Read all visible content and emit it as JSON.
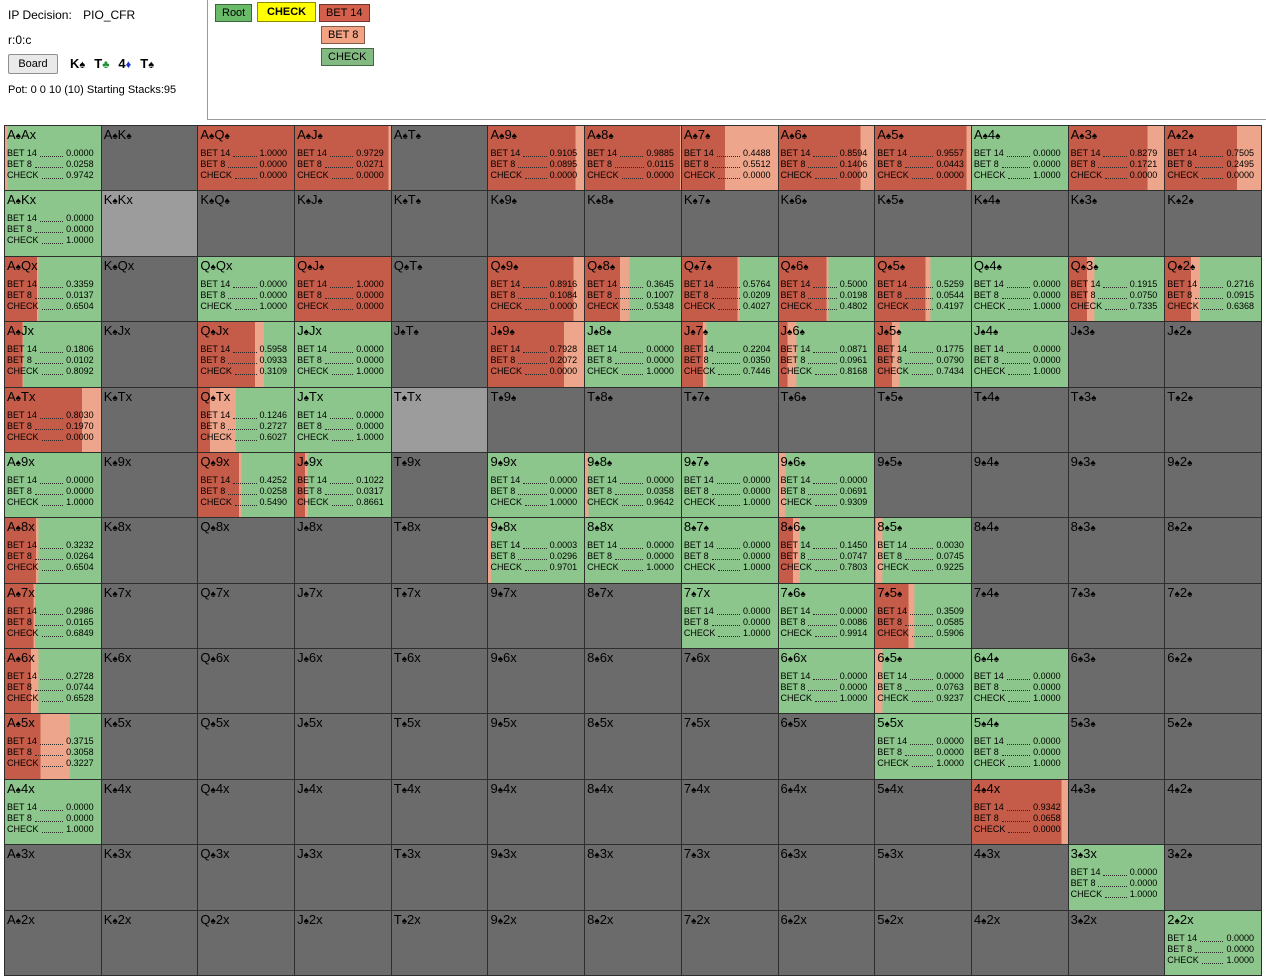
{
  "header": {
    "ip_decision_label": "IP Decision:",
    "ip_decision_value": "PIO_CFR",
    "node": "r:0:c",
    "board_button": "Board",
    "board_cards": [
      {
        "rank": "K",
        "suit": "♠",
        "color": "#000000"
      },
      {
        "rank": "T",
        "suit": "♣",
        "color": "#1e8f35"
      },
      {
        "rank": "4",
        "suit": "♦",
        "color": "#2333d6"
      },
      {
        "rank": "T",
        "suit": "♠",
        "color": "#000000"
      }
    ],
    "pot_line": "Pot: 0 0 10 (10) Starting Stacks:95"
  },
  "tree": {
    "root_label": "Root",
    "root_color": "#69ba69",
    "selected_label": "CHECK",
    "selected_color": "#ffff00",
    "actions": [
      {
        "label": "BET 14",
        "color": "#d2604d"
      },
      {
        "label": "BET 8",
        "color": "#f1a384"
      },
      {
        "label": "CHECK",
        "color": "#82ba82"
      }
    ]
  },
  "strategy": {
    "row_labels": [
      "BET 14",
      "BET 8",
      "CHECK"
    ],
    "colors": {
      "bet14": "#c45c49",
      "bet8": "#eda58b",
      "check": "#8cc68c",
      "not_in_range": "#6b6b6b",
      "blocked": "#9c9c9c"
    }
  },
  "grid": {
    "rows": 13,
    "cols": 13,
    "cells": [
      {
        "label": "A♠Ax",
        "t": "s",
        "v": [
          "0.0000",
          "0.0258",
          "0.9742"
        ]
      },
      {
        "label": "A♠K♠",
        "t": "e"
      },
      {
        "label": "A♠Q♠",
        "t": "s",
        "v": [
          "1.0000",
          "0.0000",
          "0.0000"
        ]
      },
      {
        "label": "A♠J♠",
        "t": "s",
        "v": [
          "0.9729",
          "0.0271",
          "0.0000"
        ]
      },
      {
        "label": "A♠T♠",
        "t": "e"
      },
      {
        "label": "A♠9♠",
        "t": "s",
        "v": [
          "0.9105",
          "0.0895",
          "0.0000"
        ]
      },
      {
        "label": "A♠8♠",
        "t": "s",
        "v": [
          "0.9885",
          "0.0115",
          "0.0000"
        ]
      },
      {
        "label": "A♠7♠",
        "t": "s",
        "v": [
          "0.4488",
          "0.5512",
          "0.0000"
        ]
      },
      {
        "label": "A♠6♠",
        "t": "s",
        "v": [
          "0.8594",
          "0.1406",
          "0.0000"
        ]
      },
      {
        "label": "A♠5♠",
        "t": "s",
        "v": [
          "0.9557",
          "0.0443",
          "0.0000"
        ]
      },
      {
        "label": "A♠4♠",
        "t": "s",
        "v": [
          "0.0000",
          "0.0000",
          "1.0000"
        ]
      },
      {
        "label": "A♠3♠",
        "t": "s",
        "v": [
          "0.8279",
          "0.1721",
          "0.0000"
        ]
      },
      {
        "label": "A♠2♠",
        "t": "s",
        "v": [
          "0.7505",
          "0.2495",
          "0.0000"
        ]
      },
      {
        "label": "A♠Kx",
        "t": "s",
        "v": [
          "0.0000",
          "0.0000",
          "1.0000"
        ]
      },
      {
        "label": "K♠Kx",
        "t": "b"
      },
      {
        "label": "K♠Q♠",
        "t": "e"
      },
      {
        "label": "K♠J♠",
        "t": "e"
      },
      {
        "label": "K♠T♠",
        "t": "e"
      },
      {
        "label": "K♠9♠",
        "t": "e"
      },
      {
        "label": "K♠8♠",
        "t": "e"
      },
      {
        "label": "K♠7♠",
        "t": "e"
      },
      {
        "label": "K♠6♠",
        "t": "e"
      },
      {
        "label": "K♠5♠",
        "t": "e"
      },
      {
        "label": "K♠4♠",
        "t": "e"
      },
      {
        "label": "K♠3♠",
        "t": "e"
      },
      {
        "label": "K♠2♠",
        "t": "e"
      },
      {
        "label": "A♠Qx",
        "t": "s",
        "v": [
          "0.3359",
          "0.0137",
          "0.6504"
        ]
      },
      {
        "label": "K♠Qx",
        "t": "e"
      },
      {
        "label": "Q♠Qx",
        "t": "s",
        "v": [
          "0.0000",
          "0.0000",
          "1.0000"
        ]
      },
      {
        "label": "Q♠J♠",
        "t": "s",
        "v": [
          "1.0000",
          "0.0000",
          "0.0000"
        ]
      },
      {
        "label": "Q♠T♠",
        "t": "e"
      },
      {
        "label": "Q♠9♠",
        "t": "s",
        "v": [
          "0.8916",
          "0.1084",
          "0.0000"
        ]
      },
      {
        "label": "Q♠8♠",
        "t": "s",
        "v": [
          "0.3645",
          "0.1007",
          "0.5348"
        ]
      },
      {
        "label": "Q♠7♠",
        "t": "s",
        "v": [
          "0.5764",
          "0.0209",
          "0.4027"
        ]
      },
      {
        "label": "Q♠6♠",
        "t": "s",
        "v": [
          "0.5000",
          "0.0198",
          "0.4802"
        ]
      },
      {
        "label": "Q♠5♠",
        "t": "s",
        "v": [
          "0.5259",
          "0.0544",
          "0.4197"
        ]
      },
      {
        "label": "Q♠4♠",
        "t": "s",
        "v": [
          "0.0000",
          "0.0000",
          "1.0000"
        ]
      },
      {
        "label": "Q♠3♠",
        "t": "s",
        "v": [
          "0.1915",
          "0.0750",
          "0.7335"
        ]
      },
      {
        "label": "Q♠2♠",
        "t": "s",
        "v": [
          "0.2716",
          "0.0915",
          "0.6368"
        ]
      },
      {
        "label": "A♠Jx",
        "t": "s",
        "v": [
          "0.1806",
          "0.0102",
          "0.8092"
        ]
      },
      {
        "label": "K♠Jx",
        "t": "e"
      },
      {
        "label": "Q♠Jx",
        "t": "s",
        "v": [
          "0.5958",
          "0.0933",
          "0.3109"
        ]
      },
      {
        "label": "J♠Jx",
        "t": "s",
        "v": [
          "0.0000",
          "0.0000",
          "1.0000"
        ]
      },
      {
        "label": "J♠T♠",
        "t": "e"
      },
      {
        "label": "J♠9♠",
        "t": "s",
        "v": [
          "0.7928",
          "0.2072",
          "0.0000"
        ]
      },
      {
        "label": "J♠8♠",
        "t": "s",
        "v": [
          "0.0000",
          "0.0000",
          "1.0000"
        ]
      },
      {
        "label": "J♠7♠",
        "t": "s",
        "v": [
          "0.2204",
          "0.0350",
          "0.7446"
        ]
      },
      {
        "label": "J♠6♠",
        "t": "s",
        "v": [
          "0.0871",
          "0.0961",
          "0.8168"
        ]
      },
      {
        "label": "J♠5♠",
        "t": "s",
        "v": [
          "0.1775",
          "0.0790",
          "0.7434"
        ]
      },
      {
        "label": "J♠4♠",
        "t": "s",
        "v": [
          "0.0000",
          "0.0000",
          "1.0000"
        ]
      },
      {
        "label": "J♠3♠",
        "t": "e"
      },
      {
        "label": "J♠2♠",
        "t": "e"
      },
      {
        "label": "A♠Tx",
        "t": "s",
        "v": [
          "0.8030",
          "0.1970",
          "0.0000"
        ]
      },
      {
        "label": "K♠Tx",
        "t": "e"
      },
      {
        "label": "Q♠Tx",
        "t": "s",
        "v": [
          "0.1246",
          "0.2727",
          "0.6027"
        ]
      },
      {
        "label": "J♠Tx",
        "t": "s",
        "v": [
          "0.0000",
          "0.0000",
          "1.0000"
        ]
      },
      {
        "label": "T♠Tx",
        "t": "b"
      },
      {
        "label": "T♠9♠",
        "t": "e"
      },
      {
        "label": "T♠8♠",
        "t": "e"
      },
      {
        "label": "T♠7♠",
        "t": "e"
      },
      {
        "label": "T♠6♠",
        "t": "e"
      },
      {
        "label": "T♠5♠",
        "t": "e"
      },
      {
        "label": "T♠4♠",
        "t": "e"
      },
      {
        "label": "T♠3♠",
        "t": "e"
      },
      {
        "label": "T♠2♠",
        "t": "e"
      },
      {
        "label": "A♠9x",
        "t": "s",
        "v": [
          "0.0000",
          "0.0000",
          "1.0000"
        ]
      },
      {
        "label": "K♠9x",
        "t": "e"
      },
      {
        "label": "Q♠9x",
        "t": "s",
        "v": [
          "0.4252",
          "0.0258",
          "0.5490"
        ]
      },
      {
        "label": "J♠9x",
        "t": "s",
        "v": [
          "0.1022",
          "0.0317",
          "0.8661"
        ]
      },
      {
        "label": "T♠9x",
        "t": "e"
      },
      {
        "label": "9♠9x",
        "t": "s",
        "v": [
          "0.0000",
          "0.0000",
          "1.0000"
        ]
      },
      {
        "label": "9♠8♠",
        "t": "s",
        "v": [
          "0.0000",
          "0.0358",
          "0.9642"
        ]
      },
      {
        "label": "9♠7♠",
        "t": "s",
        "v": [
          "0.0000",
          "0.0000",
          "1.0000"
        ]
      },
      {
        "label": "9♠6♠",
        "t": "s",
        "v": [
          "0.0000",
          "0.0691",
          "0.9309"
        ]
      },
      {
        "label": "9♠5♠",
        "t": "e"
      },
      {
        "label": "9♠4♠",
        "t": "e"
      },
      {
        "label": "9♠3♠",
        "t": "e"
      },
      {
        "label": "9♠2♠",
        "t": "e"
      },
      {
        "label": "A♠8x",
        "t": "s",
        "v": [
          "0.3232",
          "0.0264",
          "0.6504"
        ]
      },
      {
        "label": "K♠8x",
        "t": "e"
      },
      {
        "label": "Q♠8x",
        "t": "e"
      },
      {
        "label": "J♠8x",
        "t": "e"
      },
      {
        "label": "T♠8x",
        "t": "e"
      },
      {
        "label": "9♠8x",
        "t": "s",
        "v": [
          "0.0003",
          "0.0296",
          "0.9701"
        ]
      },
      {
        "label": "8♠8x",
        "t": "s",
        "v": [
          "0.0000",
          "0.0000",
          "1.0000"
        ]
      },
      {
        "label": "8♠7♠",
        "t": "s",
        "v": [
          "0.0000",
          "0.0000",
          "1.0000"
        ]
      },
      {
        "label": "8♠6♠",
        "t": "s",
        "v": [
          "0.1450",
          "0.0747",
          "0.7803"
        ]
      },
      {
        "label": "8♠5♠",
        "t": "s",
        "v": [
          "0.0030",
          "0.0745",
          "0.9225"
        ]
      },
      {
        "label": "8♠4♠",
        "t": "e"
      },
      {
        "label": "8♠3♠",
        "t": "e"
      },
      {
        "label": "8♠2♠",
        "t": "e"
      },
      {
        "label": "A♠7x",
        "t": "s",
        "v": [
          "0.2986",
          "0.0165",
          "0.6849"
        ]
      },
      {
        "label": "K♠7x",
        "t": "e"
      },
      {
        "label": "Q♠7x",
        "t": "e"
      },
      {
        "label": "J♠7x",
        "t": "e"
      },
      {
        "label": "T♠7x",
        "t": "e"
      },
      {
        "label": "9♠7x",
        "t": "e"
      },
      {
        "label": "8♠7x",
        "t": "e"
      },
      {
        "label": "7♠7x",
        "t": "s",
        "v": [
          "0.0000",
          "0.0000",
          "1.0000"
        ]
      },
      {
        "label": "7♠6♠",
        "t": "s",
        "v": [
          "0.0000",
          "0.0086",
          "0.9914"
        ]
      },
      {
        "label": "7♠5♠",
        "t": "s",
        "v": [
          "0.3509",
          "0.0585",
          "0.5906"
        ]
      },
      {
        "label": "7♠4♠",
        "t": "e"
      },
      {
        "label": "7♠3♠",
        "t": "e"
      },
      {
        "label": "7♠2♠",
        "t": "e"
      },
      {
        "label": "A♠6x",
        "t": "s",
        "v": [
          "0.2728",
          "0.0744",
          "0.6528"
        ]
      },
      {
        "label": "K♠6x",
        "t": "e"
      },
      {
        "label": "Q♠6x",
        "t": "e"
      },
      {
        "label": "J♠6x",
        "t": "e"
      },
      {
        "label": "T♠6x",
        "t": "e"
      },
      {
        "label": "9♠6x",
        "t": "e"
      },
      {
        "label": "8♠6x",
        "t": "e"
      },
      {
        "label": "7♠6x",
        "t": "e"
      },
      {
        "label": "6♠6x",
        "t": "s",
        "v": [
          "0.0000",
          "0.0000",
          "1.0000"
        ]
      },
      {
        "label": "6♠5♠",
        "t": "s",
        "v": [
          "0.0000",
          "0.0763",
          "0.9237"
        ]
      },
      {
        "label": "6♠4♠",
        "t": "s",
        "v": [
          "0.0000",
          "0.0000",
          "1.0000"
        ]
      },
      {
        "label": "6♠3♠",
        "t": "e"
      },
      {
        "label": "6♠2♠",
        "t": "e"
      },
      {
        "label": "A♠5x",
        "t": "s",
        "v": [
          "0.3715",
          "0.3058",
          "0.3227"
        ]
      },
      {
        "label": "K♠5x",
        "t": "e"
      },
      {
        "label": "Q♠5x",
        "t": "e"
      },
      {
        "label": "J♠5x",
        "t": "e"
      },
      {
        "label": "T♠5x",
        "t": "e"
      },
      {
        "label": "9♠5x",
        "t": "e"
      },
      {
        "label": "8♠5x",
        "t": "e"
      },
      {
        "label": "7♠5x",
        "t": "e"
      },
      {
        "label": "6♠5x",
        "t": "e"
      },
      {
        "label": "5♠5x",
        "t": "s",
        "v": [
          "0.0000",
          "0.0000",
          "1.0000"
        ]
      },
      {
        "label": "5♠4♠",
        "t": "s",
        "v": [
          "0.0000",
          "0.0000",
          "1.0000"
        ]
      },
      {
        "label": "5♠3♠",
        "t": "e"
      },
      {
        "label": "5♠2♠",
        "t": "e"
      },
      {
        "label": "A♠4x",
        "t": "s",
        "v": [
          "0.0000",
          "0.0000",
          "1.0000"
        ]
      },
      {
        "label": "K♠4x",
        "t": "e"
      },
      {
        "label": "Q♠4x",
        "t": "e"
      },
      {
        "label": "J♠4x",
        "t": "e"
      },
      {
        "label": "T♠4x",
        "t": "e"
      },
      {
        "label": "9♠4x",
        "t": "e"
      },
      {
        "label": "8♠4x",
        "t": "e"
      },
      {
        "label": "7♠4x",
        "t": "e"
      },
      {
        "label": "6♠4x",
        "t": "e"
      },
      {
        "label": "5♠4x",
        "t": "e"
      },
      {
        "label": "4♠4x",
        "t": "s",
        "v": [
          "0.9342",
          "0.0658",
          "0.0000"
        ]
      },
      {
        "label": "4♠3♠",
        "t": "e"
      },
      {
        "label": "4♠2♠",
        "t": "e"
      },
      {
        "label": "A♠3x",
        "t": "e"
      },
      {
        "label": "K♠3x",
        "t": "e"
      },
      {
        "label": "Q♠3x",
        "t": "e"
      },
      {
        "label": "J♠3x",
        "t": "e"
      },
      {
        "label": "T♠3x",
        "t": "e"
      },
      {
        "label": "9♠3x",
        "t": "e"
      },
      {
        "label": "8♠3x",
        "t": "e"
      },
      {
        "label": "7♠3x",
        "t": "e"
      },
      {
        "label": "6♠3x",
        "t": "e"
      },
      {
        "label": "5♠3x",
        "t": "e"
      },
      {
        "label": "4♠3x",
        "t": "e"
      },
      {
        "label": "3♠3x",
        "t": "s",
        "v": [
          "0.0000",
          "0.0000",
          "1.0000"
        ]
      },
      {
        "label": "3♠2♠",
        "t": "e"
      },
      {
        "label": "A♠2x",
        "t": "e"
      },
      {
        "label": "K♠2x",
        "t": "e"
      },
      {
        "label": "Q♠2x",
        "t": "e"
      },
      {
        "label": "J♠2x",
        "t": "e"
      },
      {
        "label": "T♠2x",
        "t": "e"
      },
      {
        "label": "9♠2x",
        "t": "e"
      },
      {
        "label": "8♠2x",
        "t": "e"
      },
      {
        "label": "7♠2x",
        "t": "e"
      },
      {
        "label": "6♠2x",
        "t": "e"
      },
      {
        "label": "5♠2x",
        "t": "e"
      },
      {
        "label": "4♠2x",
        "t": "e"
      },
      {
        "label": "3♠2x",
        "t": "e"
      },
      {
        "label": "2♠2x",
        "t": "s",
        "v": [
          "0.0000",
          "0.0000",
          "1.0000"
        ]
      }
    ]
  }
}
